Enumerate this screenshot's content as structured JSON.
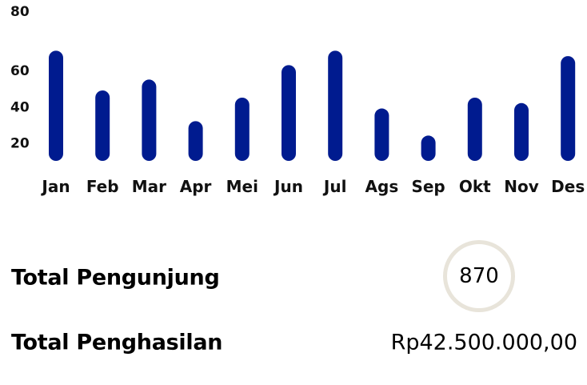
{
  "chart_data": {
    "type": "bar",
    "categories": [
      "Jan",
      "Feb",
      "Mar",
      "Apr",
      "Mei",
      "Jun",
      "Jul",
      "Ags",
      "Sep",
      "Okt",
      "Nov",
      "Des"
    ],
    "values": [
      71,
      49,
      55,
      32,
      45,
      63,
      71,
      39,
      24,
      45,
      42,
      68
    ],
    "y_ticks": [
      20,
      40,
      60,
      80
    ],
    "ylim": [
      10,
      80
    ],
    "title": "",
    "xlabel": "",
    "ylabel": "",
    "grid": false,
    "bar_color": "#001b8f"
  },
  "summary": {
    "visitors_label": "Total Pengunjung",
    "visitors_value": "870",
    "income_label": "Total Penghasilan",
    "income_value": "Rp42.500.000,00"
  },
  "colors": {
    "accent": "#001b8f",
    "circle_border": "#e8e4da"
  }
}
